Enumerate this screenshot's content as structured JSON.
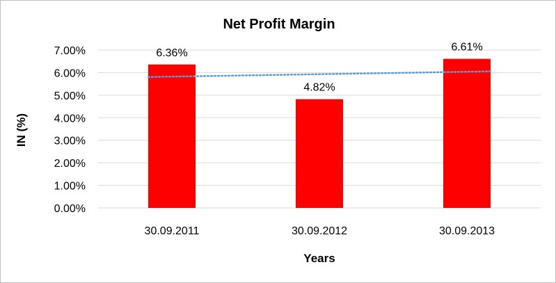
{
  "chart_data": {
    "type": "bar",
    "title": "Net Profit Margin",
    "xlabel": "Years",
    "ylabel": "IN (%)",
    "categories": [
      "30.09.2011",
      "30.09.2012",
      "30.09.2013"
    ],
    "values": [
      6.36,
      4.82,
      6.61
    ],
    "data_labels": [
      "6.36%",
      "4.82%",
      "6.61%"
    ],
    "ylim": [
      0,
      7
    ],
    "yticks": [
      0,
      1,
      2,
      3,
      4,
      5,
      6,
      7
    ],
    "ytick_labels": [
      "0.00%",
      "1.00%",
      "2.00%",
      "3.00%",
      "4.00%",
      "5.00%",
      "6.00%",
      "7.00%"
    ],
    "grid": true,
    "legend": "none",
    "trendline": {
      "type": "linear",
      "style": "dotted"
    },
    "colors": {
      "bar": "#ff0000",
      "trendline": "#5b9bd5",
      "grid": "#d9d9d9",
      "border": "#bfbfbf"
    }
  }
}
